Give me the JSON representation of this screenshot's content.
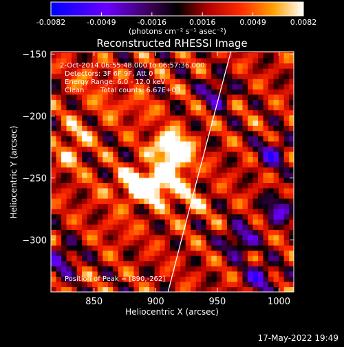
{
  "colorbar": {
    "ticks": [
      "-0.0082",
      "-0.0049",
      "-0.0016",
      "0.0016",
      "0.0049",
      "0.0082"
    ],
    "unit_label": "(photons cm⁻² s⁻¹ asec⁻²)"
  },
  "info": {
    "line1": "2-Oct-2014 06:55:48.000 to 06:57:36.000",
    "line2": "Detectors: 3F 6F 9F, Att 0",
    "line3": "Energy Range: 6.0 - 12.0 keV",
    "line4_a": "Clean",
    "line4_b": "Total counts: 6.67E+03",
    "peak": "Position of Peak = [890,-262]"
  },
  "footer": {
    "timestamp": "17-May-2022 19:49"
  },
  "chart_data": {
    "type": "heatmap",
    "title": "Reconstructed RHESSI Image",
    "xlabel": "Heliocentric X (arcsec)",
    "ylabel": "Heliocentric Y (arcsec)",
    "xlim": [
      815,
      1012
    ],
    "ylim": [
      -342,
      -148
    ],
    "x_ticks": [
      850,
      900,
      950,
      1000
    ],
    "y_ticks": [
      -150,
      -200,
      -250,
      -300
    ],
    "x_tick_labels": [
      "850",
      "900",
      "950",
      "1000"
    ],
    "y_tick_labels": [
      "−150",
      "−200",
      "−250",
      "−300"
    ],
    "color_range": [
      -0.0082,
      0.0082
    ],
    "colormap": "blue-purple-black-red-yellow-white",
    "peak_position": [
      890,
      -262
    ],
    "limb_curve": [
      [
        910,
        -342
      ],
      [
        935,
        -245
      ],
      [
        961,
        -148
      ]
    ],
    "hot_spots": [
      {
        "x": 882,
        "y": -254,
        "value": 0.0078
      },
      {
        "x": 890,
        "y": -258,
        "value": 0.0082
      },
      {
        "x": 900,
        "y": -256,
        "value": 0.0074
      },
      {
        "x": 910,
        "y": -252,
        "value": 0.0068
      },
      {
        "x": 905,
        "y": -225,
        "value": 0.006
      },
      {
        "x": 913,
        "y": -222,
        "value": 0.0072
      },
      {
        "x": 918,
        "y": -230,
        "value": 0.0066
      },
      {
        "x": 922,
        "y": -236,
        "value": 0.0058
      },
      {
        "x": 928,
        "y": -268,
        "value": 0.006
      },
      {
        "x": 835,
        "y": -215,
        "value": 0.0058
      },
      {
        "x": 830,
        "y": -235,
        "value": 0.0052
      },
      {
        "x": 862,
        "y": -190,
        "value": 0.0048
      },
      {
        "x": 888,
        "y": -195,
        "value": 0.0046
      },
      {
        "x": 845,
        "y": -170,
        "value": 0.005
      },
      {
        "x": 870,
        "y": -290,
        "value": 0.004
      },
      {
        "x": 855,
        "y": -260,
        "value": 0.0038
      }
    ],
    "cold_spots": [
      {
        "x": 968,
        "y": -300,
        "value": -0.0042
      },
      {
        "x": 985,
        "y": -330,
        "value": -0.0038
      },
      {
        "x": 1000,
        "y": -275,
        "value": -0.0036
      },
      {
        "x": 995,
        "y": -230,
        "value": -0.0034
      },
      {
        "x": 825,
        "y": -315,
        "value": -0.0032
      },
      {
        "x": 950,
        "y": -180,
        "value": -0.003
      }
    ]
  }
}
